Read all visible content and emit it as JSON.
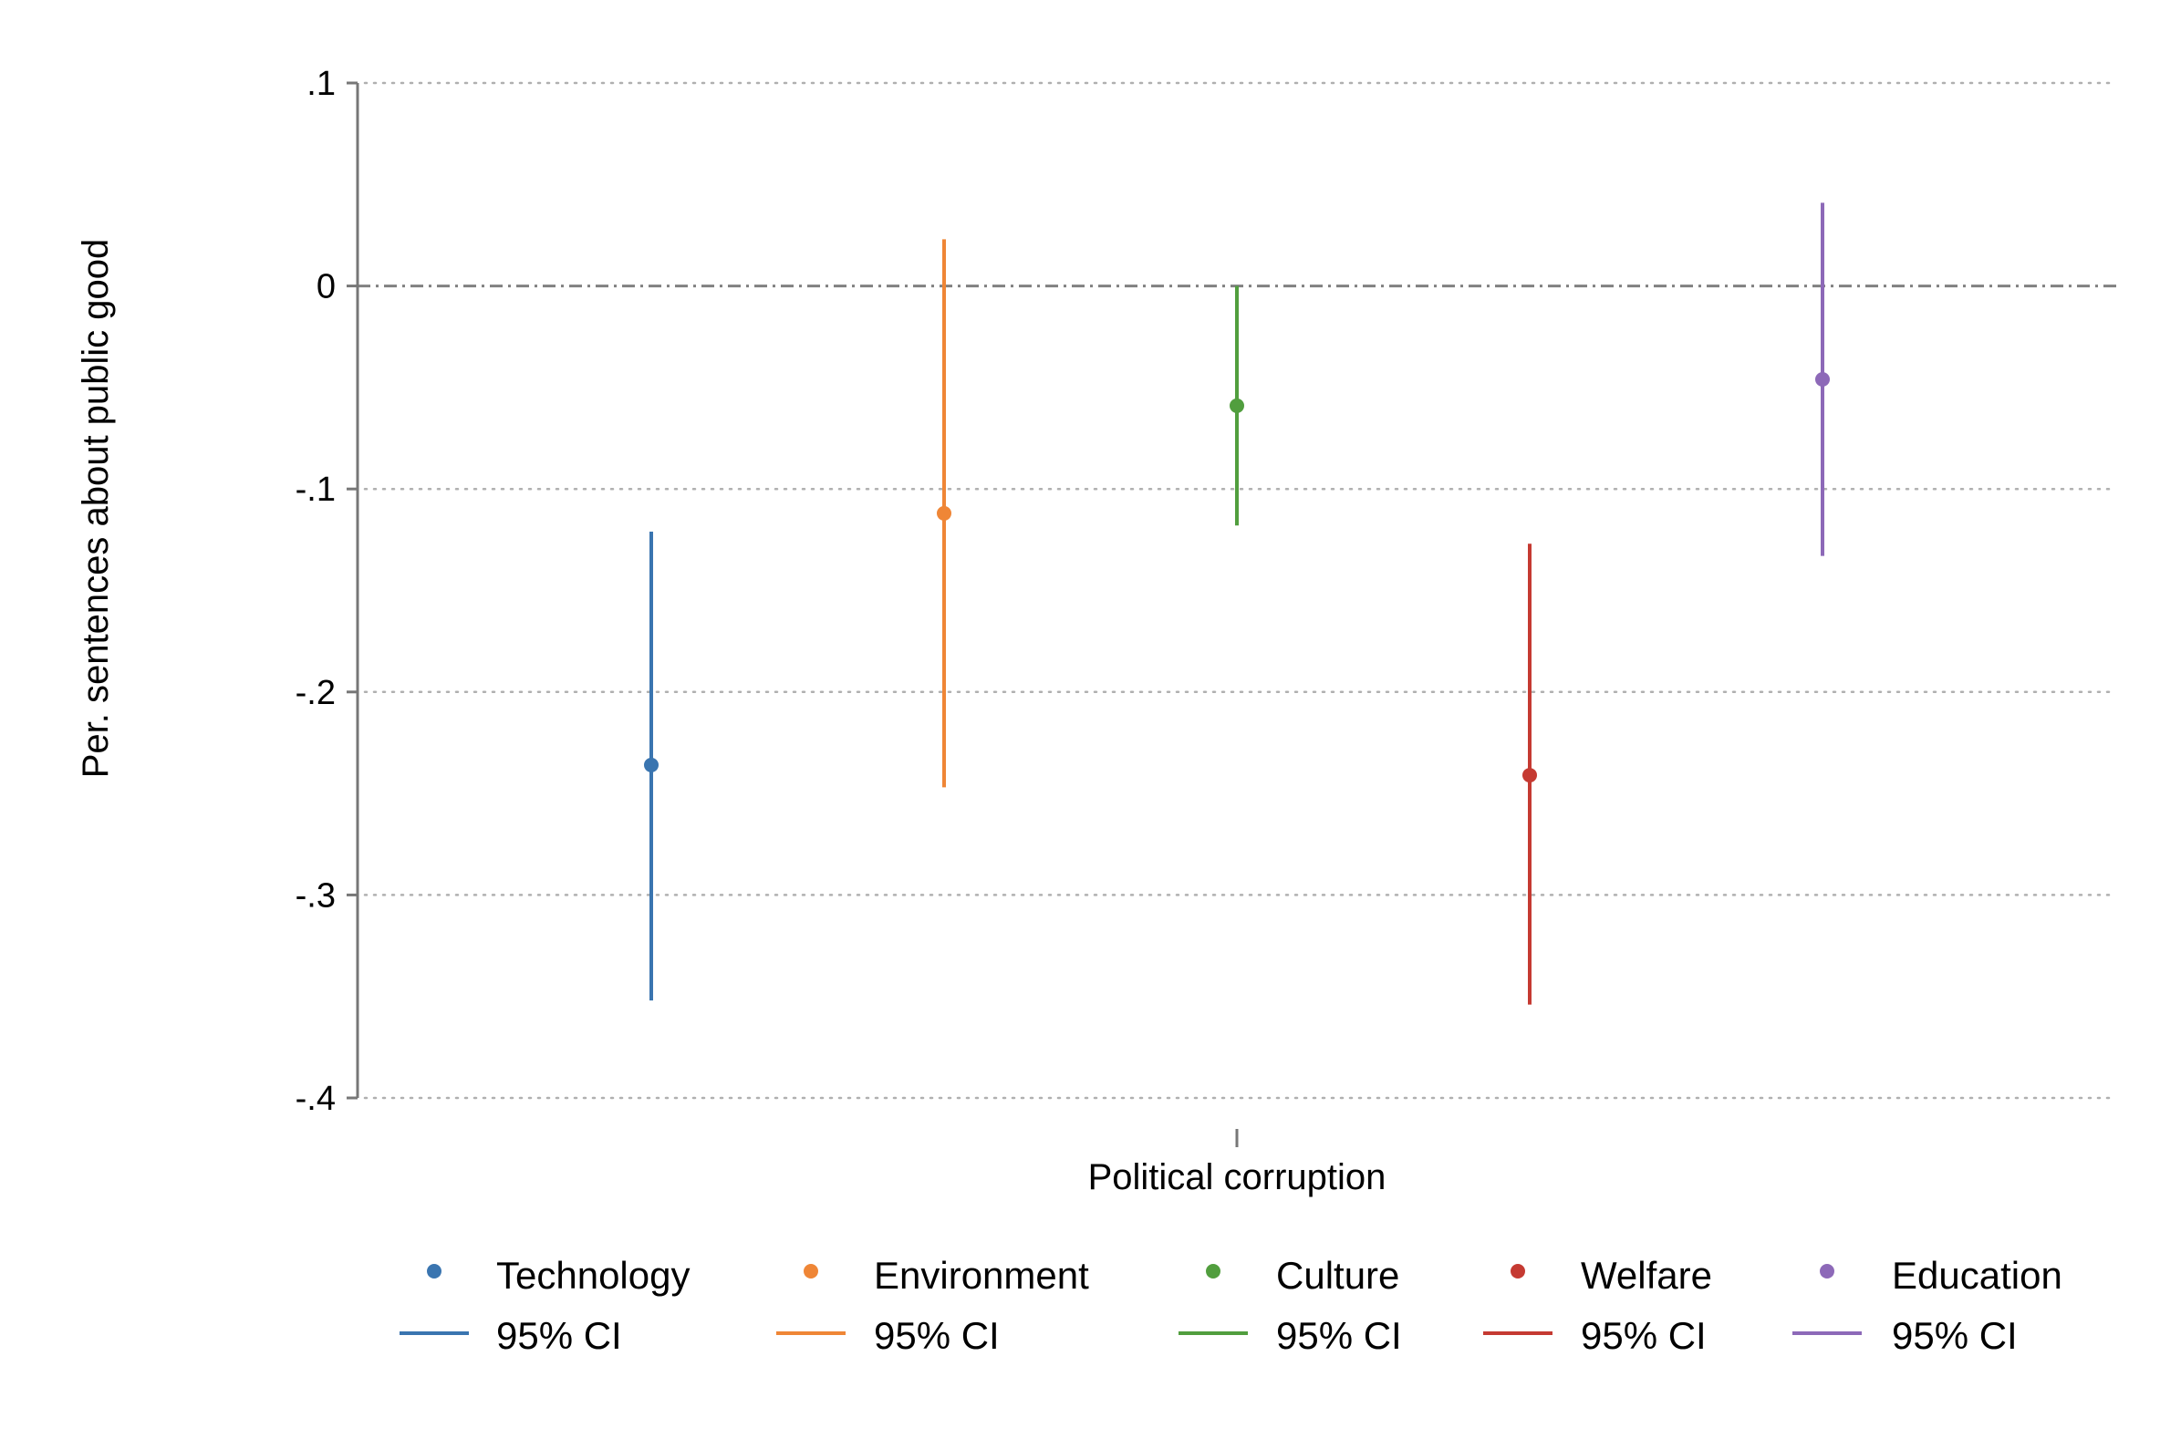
{
  "chart_data": {
    "type": "scatter",
    "subtype": "coefficient plot with 95% confidence intervals",
    "title": "",
    "xlabel": "",
    "ylabel": "Per. sentences about public good",
    "x_tick_label": "Political corruption",
    "ylim": [
      -0.4,
      0.1
    ],
    "y_ticks": [
      {
        "value": 0.1,
        "label": ".1"
      },
      {
        "value": 0,
        "label": "0"
      },
      {
        "value": -0.1,
        "label": "-.1"
      },
      {
        "value": -0.2,
        "label": "-.2"
      },
      {
        "value": -0.3,
        "label": "-.3"
      },
      {
        "value": -0.4,
        "label": "-.4"
      }
    ],
    "grid": "horizontal dotted",
    "reference_line": {
      "y": 0,
      "style": "dashed"
    },
    "legend_position": "bottom",
    "ci_legend_label": "95% CI",
    "series": [
      {
        "name": "Technology",
        "color": "#3a75b0",
        "estimate": -0.236,
        "ci_low": -0.352,
        "ci_high": -0.121
      },
      {
        "name": "Environment",
        "color": "#ef8636",
        "estimate": -0.112,
        "ci_low": -0.247,
        "ci_high": 0.023
      },
      {
        "name": "Culture",
        "color": "#519e3e",
        "estimate": -0.059,
        "ci_low": -0.118,
        "ci_high": 0.0
      },
      {
        "name": "Welfare",
        "color": "#c53a32",
        "estimate": -0.241,
        "ci_low": -0.354,
        "ci_high": -0.127
      },
      {
        "name": "Education",
        "color": "#8d69b8",
        "estimate": -0.046,
        "ci_low": -0.133,
        "ci_high": 0.041
      }
    ]
  }
}
